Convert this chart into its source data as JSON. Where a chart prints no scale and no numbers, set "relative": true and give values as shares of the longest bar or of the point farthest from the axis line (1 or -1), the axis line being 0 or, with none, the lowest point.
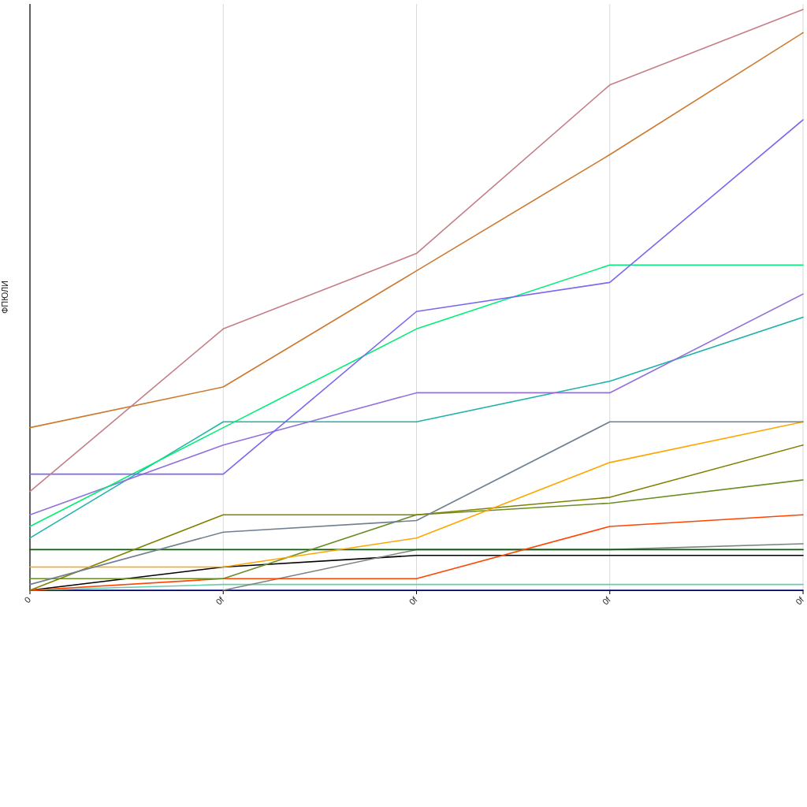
{
  "chart_data": {
    "type": "line",
    "ylabel": "ФПЮЛИ",
    "categories": [
      "0",
      "0f",
      "0f",
      "0f",
      "0f"
    ],
    "relative": true,
    "grid": "x",
    "series": [
      {
        "color": "#000080",
        "values": [
          0,
          0,
          0,
          0,
          0
        ]
      },
      {
        "color": "#66cdaa",
        "values": [
          0,
          0.01,
          0.01,
          0.01,
          0.01
        ]
      },
      {
        "color": "#000000",
        "values": [
          0,
          0.04,
          0.06,
          0.06,
          0.06
        ]
      },
      {
        "color": "#808080",
        "values": [
          null,
          0,
          0.07,
          0.07,
          0.08
        ]
      },
      {
        "color": "#006400",
        "values": [
          0.07,
          0.07,
          0.07,
          0.07,
          0.07
        ]
      },
      {
        "color": "#ff4500",
        "values": [
          0,
          0.02,
          0.02,
          0.11,
          0.13
        ]
      },
      {
        "color": "#6b8e23",
        "values": [
          0.02,
          0.02,
          0.13,
          0.15,
          0.19
        ]
      },
      {
        "color": "#808000",
        "values": [
          0,
          0.13,
          0.13,
          0.16,
          0.25
        ]
      },
      {
        "color": "#ffa500",
        "values": [
          0.04,
          0.04,
          0.09,
          0.22,
          0.29
        ]
      },
      {
        "color": "#708090",
        "values": [
          0.01,
          0.1,
          0.12,
          0.29,
          0.29
        ]
      },
      {
        "color": "#20b2aa",
        "values": [
          0.09,
          0.29,
          0.29,
          0.36,
          0.47
        ]
      },
      {
        "color": "#9370db",
        "values": [
          0.13,
          0.25,
          0.34,
          0.34,
          0.51
        ]
      },
      {
        "color": "#00ee76",
        "values": [
          0.11,
          0.28,
          0.45,
          0.56,
          0.56
        ]
      },
      {
        "color": "#7b68ee",
        "values": [
          0.2,
          0.2,
          0.48,
          0.53,
          0.81
        ]
      },
      {
        "color": "#cd7a30",
        "values": [
          0.28,
          0.35,
          0.55,
          0.75,
          0.96
        ]
      },
      {
        "color": "#c47f87",
        "values": [
          0.17,
          0.45,
          0.58,
          0.87,
          1
        ]
      }
    ]
  }
}
